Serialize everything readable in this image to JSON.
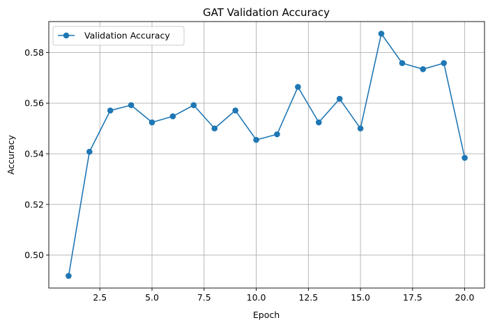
{
  "chart_data": {
    "type": "line",
    "title": "GAT Validation Accuracy",
    "xlabel": "Epoch",
    "ylabel": "Accuracy",
    "x": [
      1,
      2,
      3,
      4,
      5,
      6,
      7,
      8,
      9,
      10,
      11,
      12,
      13,
      14,
      15,
      16,
      17,
      18,
      19,
      20
    ],
    "series": [
      {
        "name": "Validation Accuracy",
        "color": "#1f77b4",
        "marker": "circle",
        "values": [
          0.4918,
          0.5408,
          0.5571,
          0.5592,
          0.5524,
          0.5548,
          0.5592,
          0.55,
          0.5571,
          0.5455,
          0.5477,
          0.5664,
          0.5524,
          0.5617,
          0.55,
          0.5874,
          0.5758,
          0.5734,
          0.5758,
          0.5384
        ]
      }
    ],
    "xlim": [
      0.05,
      20.95
    ],
    "ylim": [
      0.487,
      0.5922
    ],
    "xticks": [
      2.5,
      5.0,
      7.5,
      10.0,
      12.5,
      15.0,
      17.5,
      20.0
    ],
    "xtick_labels": [
      "2.5",
      "5.0",
      "7.5",
      "10.0",
      "12.5",
      "15.0",
      "17.5",
      "20.0"
    ],
    "yticks": [
      0.5,
      0.52,
      0.54,
      0.56,
      0.58
    ],
    "ytick_labels": [
      "0.50",
      "0.52",
      "0.54",
      "0.56",
      "0.58"
    ],
    "grid": true,
    "legend_position": "top-left"
  }
}
